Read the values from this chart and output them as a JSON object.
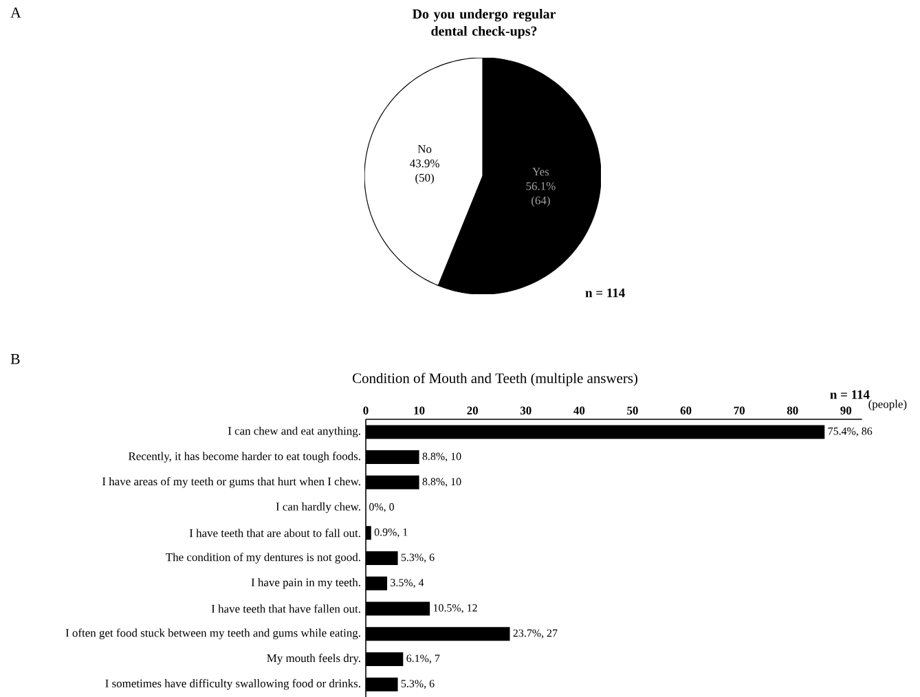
{
  "chart_data": [
    {
      "type": "pie",
      "title": "Do you undergo regular dental check-ups?",
      "categories": [
        "Yes",
        "No"
      ],
      "values": [
        64,
        50
      ],
      "value_labels": [
        "56.1% (64)",
        "43.9% (50)"
      ],
      "colors": [
        "#000000",
        "#ffffff"
      ],
      "annotations": [
        "A",
        "n = 114"
      ]
    },
    {
      "type": "bar",
      "orientation": "horizontal",
      "title": "Condition of Mouth and Teeth (multiple answers)",
      "xlabel": "(people)",
      "categories": [
        "I can chew and eat anything.",
        "Recently, it has become harder to eat tough foods.",
        "I have areas of my teeth or gums that hurt when I chew.",
        "I can hardly chew.",
        "I have teeth that are about to fall out.",
        "The condition of my dentures is not good.",
        "I have pain in my teeth.",
        "I have teeth that have fallen out.",
        "I often get food stuck between my teeth and gums while eating.",
        "My mouth feels dry.",
        "I sometimes have difficulty swallowing food or drinks."
      ],
      "values": [
        86,
        10,
        10,
        0,
        1,
        6,
        4,
        12,
        27,
        7,
        6
      ],
      "value_labels": [
        "75.4%, 86",
        "8.8%, 10",
        "8.8%, 10",
        "0%, 0",
        "0.9%, 1",
        "5.3%, 6",
        "3.5%, 4",
        "10.5%, 12",
        "23.7%, 27",
        "6.1%, 7",
        "5.3%, 6"
      ],
      "color": "#000000",
      "xlim": [
        0,
        93
      ],
      "xticks": [
        0,
        10,
        20,
        30,
        40,
        50,
        60,
        70,
        80,
        90
      ],
      "annotations": [
        "B",
        "n = 114"
      ]
    }
  ]
}
